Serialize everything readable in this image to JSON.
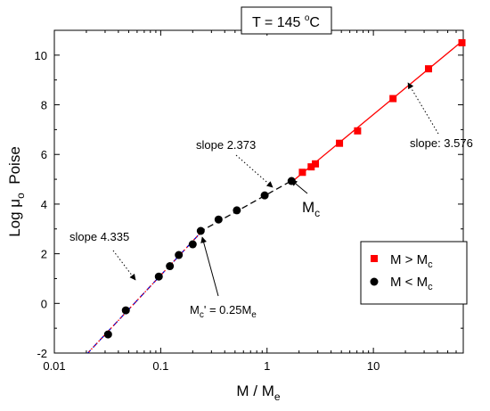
{
  "chart_data": {
    "type": "scatter",
    "x_scale": "log",
    "xlim": [
      0.01,
      70
    ],
    "ylim": [
      -2,
      11
    ],
    "xlabel": {
      "main": "M / M",
      "sub": "e"
    },
    "ylabel": {
      "pre": "Log ",
      "mu": "μ",
      "sub": "o",
      "post": "  Poise"
    },
    "x_ticks": [
      {
        "value": 0.01,
        "label": "0.01"
      },
      {
        "value": 0.1,
        "label": "0.1"
      },
      {
        "value": 1,
        "label": "1"
      },
      {
        "value": 10,
        "label": "10"
      }
    ],
    "y_ticks": [
      -2,
      0,
      2,
      4,
      6,
      8,
      10
    ],
    "title_box": {
      "main": "T = 145 ",
      "deg": "o",
      "unit": "C"
    },
    "series": [
      {
        "name": {
          "main": "M > M",
          "sub": "c"
        },
        "marker": "square",
        "color": "#ff0000",
        "points": [
          {
            "x": 2.15,
            "y": 5.28
          },
          {
            "x": 2.6,
            "y": 5.5
          },
          {
            "x": 2.85,
            "y": 5.62
          },
          {
            "x": 4.8,
            "y": 6.45
          },
          {
            "x": 7.1,
            "y": 6.95
          },
          {
            "x": 15.3,
            "y": 8.25
          },
          {
            "x": 33,
            "y": 9.45
          },
          {
            "x": 68,
            "y": 10.5
          }
        ],
        "fit": {
          "x1": 1.75,
          "y1": 4.93,
          "x2": 70,
          "y2": 10.6,
          "color": "#ff0000",
          "dash": "solid"
        }
      },
      {
        "name": {
          "main": "M < M",
          "sub": "c"
        },
        "marker": "circle",
        "color": "#000000",
        "points": [
          {
            "x": 0.032,
            "y": -1.25
          },
          {
            "x": 0.047,
            "y": -0.28
          },
          {
            "x": 0.096,
            "y": 1.08
          },
          {
            "x": 0.122,
            "y": 1.5
          },
          {
            "x": 0.148,
            "y": 1.95
          },
          {
            "x": 0.2,
            "y": 2.38
          },
          {
            "x": 0.238,
            "y": 2.92
          },
          {
            "x": 0.35,
            "y": 3.38
          },
          {
            "x": 0.52,
            "y": 3.75
          },
          {
            "x": 0.95,
            "y": 4.35
          },
          {
            "x": 1.7,
            "y": 4.93
          }
        ]
      }
    ],
    "lines": [
      {
        "x1": 0.02,
        "y1": -2.06,
        "x2": 0.25,
        "y2": 2.95,
        "color": "#0000cc",
        "dash": "dashed"
      },
      {
        "x1": 0.02,
        "y1": -2.06,
        "x2": 0.25,
        "y2": 2.95,
        "color": "#ff0000",
        "dash": "dotted"
      },
      {
        "x1": 0.23,
        "y1": 2.87,
        "x2": 1.75,
        "y2": 4.97,
        "color": "#000000",
        "dash": "dashed"
      }
    ],
    "annotations": [
      {
        "id": "slope-4335",
        "text": "slope 4.335"
      },
      {
        "id": "slope-2373",
        "text": "slope 2.373"
      },
      {
        "id": "slope-3576",
        "text": "slope: 3.576"
      },
      {
        "id": "mc-label",
        "main": "M",
        "sub": "c"
      },
      {
        "id": "mcprime-label",
        "main": "M",
        "sub1": "c",
        "mid": "' = 0.25M",
        "sub2": "e"
      }
    ],
    "legend": {
      "position": "right-middle"
    }
  }
}
